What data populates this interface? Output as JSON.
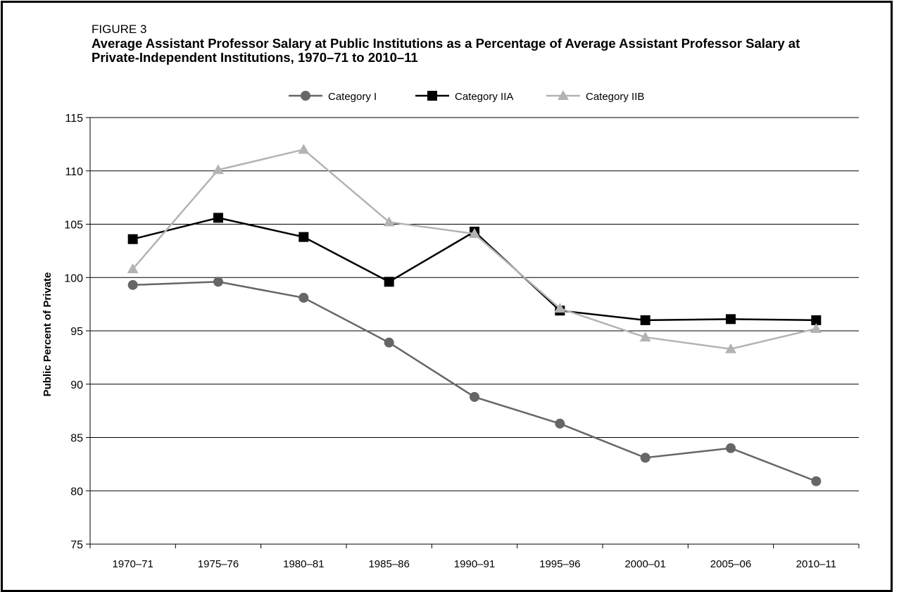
{
  "figure": {
    "label": "FIGURE 3",
    "title": "Average Assistant Professor Salary at Public Institutions as a Percentage of Average Assistant Professor Salary at Private-Independent Institutions, 1970–71 to 2010–11"
  },
  "chart_data": {
    "type": "line",
    "title": "Average Assistant Professor Salary at Public Institutions as a Percentage of Average Assistant Professor Salary at Private-Independent Institutions, 1970–71 to 2010–11",
    "xlabel": "",
    "ylabel": "Public Percent of Private",
    "ylim": [
      75,
      115
    ],
    "yticks": [
      75,
      80,
      85,
      90,
      95,
      100,
      105,
      110,
      115
    ],
    "categories": [
      "1970–71",
      "1975–76",
      "1980–81",
      "1985–86",
      "1990–91",
      "1995–96",
      "2000–01",
      "2005–06",
      "2010–11"
    ],
    "grid": true,
    "legend_position": "top",
    "series": [
      {
        "name": "Category I",
        "marker": "circle",
        "color": "#666666",
        "values": [
          99.3,
          99.6,
          98.1,
          93.9,
          88.8,
          86.3,
          83.1,
          84.0,
          80.9
        ]
      },
      {
        "name": "Category IIA",
        "marker": "square",
        "color": "#000000",
        "values": [
          103.6,
          105.6,
          103.8,
          99.6,
          104.3,
          96.9,
          96.0,
          96.1,
          96.0
        ]
      },
      {
        "name": "Category IIB",
        "marker": "triangle",
        "color": "#b3b3b3",
        "values": [
          100.8,
          110.1,
          112.0,
          105.2,
          104.1,
          97.1,
          94.4,
          93.3,
          95.2
        ]
      }
    ]
  }
}
